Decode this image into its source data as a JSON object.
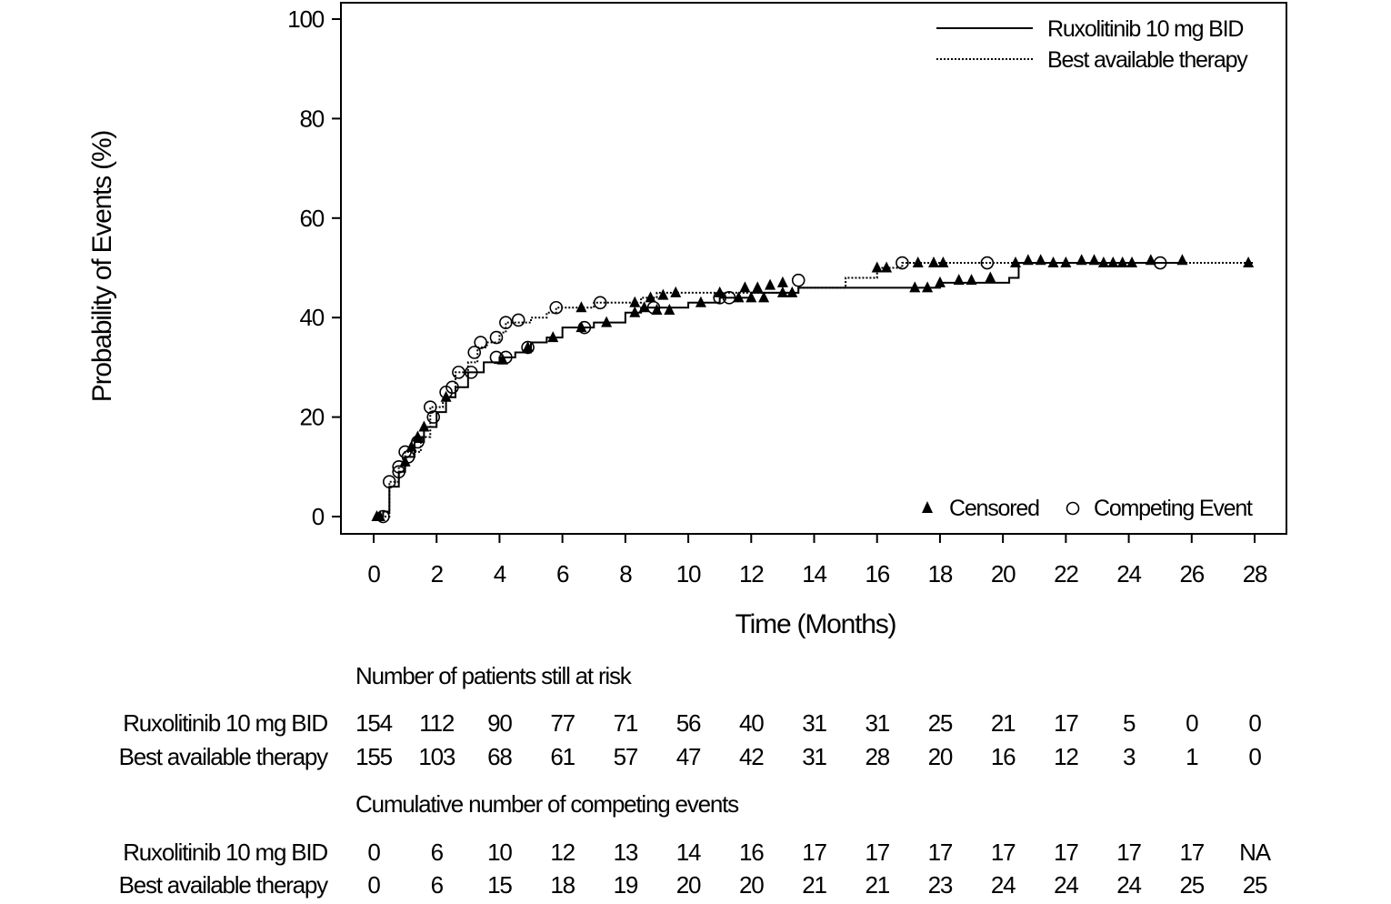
{
  "chart_data": {
    "type": "line",
    "subtype": "cumulative incidence step curve",
    "xlabel": "Time (Months)",
    "ylabel": "Probability of Events (%)",
    "xlim": [
      0,
      28
    ],
    "ylim": [
      0,
      100
    ],
    "xticks": [
      0,
      2,
      4,
      6,
      8,
      10,
      12,
      14,
      16,
      18,
      20,
      22,
      24,
      26,
      28
    ],
    "yticks": [
      0,
      20,
      40,
      60,
      80,
      100
    ],
    "grid": false,
    "legend": {
      "placement": "top-right",
      "markers_placement": "bottom-right",
      "censored_label": "Censored",
      "competing_label": "Competing Event"
    },
    "series": [
      {
        "name": "Ruxolitinib 10 mg BID",
        "style": "solid",
        "color": "#000000",
        "steps": [
          [
            0,
            0
          ],
          [
            0.3,
            1
          ],
          [
            0.5,
            6
          ],
          [
            0.8,
            9
          ],
          [
            1,
            12
          ],
          [
            1.3,
            15
          ],
          [
            1.6,
            18
          ],
          [
            2,
            21
          ],
          [
            2.3,
            24
          ],
          [
            2.6,
            26
          ],
          [
            3,
            29
          ],
          [
            3.5,
            31
          ],
          [
            4,
            32
          ],
          [
            4.5,
            33
          ],
          [
            5,
            35
          ],
          [
            5.5,
            36
          ],
          [
            6,
            38
          ],
          [
            7,
            39
          ],
          [
            8,
            41
          ],
          [
            8.5,
            42
          ],
          [
            10,
            43
          ],
          [
            11,
            44
          ],
          [
            12,
            45
          ],
          [
            13.5,
            46
          ],
          [
            17.2,
            46
          ],
          [
            18,
            47
          ],
          [
            20.2,
            48
          ],
          [
            20.5,
            51
          ],
          [
            25.7,
            51
          ]
        ],
        "censored": [
          [
            0.2,
            0
          ],
          [
            1,
            11
          ],
          [
            1.4,
            16
          ],
          [
            2.3,
            24
          ],
          [
            4.1,
            31.5
          ],
          [
            4.9,
            34
          ],
          [
            5.7,
            36
          ],
          [
            6.6,
            38
          ],
          [
            7.4,
            39
          ],
          [
            8.3,
            41
          ],
          [
            8.6,
            42
          ],
          [
            9,
            41.5
          ],
          [
            9.4,
            41.5
          ],
          [
            10.4,
            43
          ],
          [
            11.6,
            44
          ],
          [
            12,
            44
          ],
          [
            12.4,
            44
          ],
          [
            13,
            45
          ],
          [
            13.3,
            45
          ],
          [
            17.2,
            46
          ],
          [
            17.6,
            46
          ],
          [
            18,
            47
          ],
          [
            18.6,
            47.5
          ],
          [
            19,
            47.5
          ],
          [
            19.6,
            48
          ]
        ],
        "competing": [
          [
            0.3,
            0
          ],
          [
            0.8,
            9
          ],
          [
            1.1,
            12
          ],
          [
            1.4,
            15
          ],
          [
            1.9,
            20
          ],
          [
            2.5,
            26
          ],
          [
            3.1,
            29
          ],
          [
            3.9,
            32
          ],
          [
            4.2,
            32
          ],
          [
            4.9,
            34
          ],
          [
            6.7,
            38
          ],
          [
            8.9,
            42
          ],
          [
            11,
            44
          ],
          [
            11.3,
            44
          ]
        ]
      },
      {
        "name": "Best available therapy",
        "style": "dotted",
        "color": "#000000",
        "steps": [
          [
            0,
            0
          ],
          [
            0.5,
            7
          ],
          [
            0.8,
            10
          ],
          [
            1,
            13
          ],
          [
            1.5,
            16
          ],
          [
            1.8,
            22
          ],
          [
            2.2,
            24
          ],
          [
            2.6,
            29
          ],
          [
            3,
            31
          ],
          [
            3.3,
            34
          ],
          [
            3.6,
            35
          ],
          [
            4,
            37
          ],
          [
            4.2,
            39
          ],
          [
            5,
            40
          ],
          [
            5.5,
            41
          ],
          [
            5.8,
            42
          ],
          [
            7,
            43
          ],
          [
            8.5,
            44
          ],
          [
            9,
            45
          ],
          [
            13.5,
            46
          ],
          [
            15,
            48
          ],
          [
            16,
            50
          ],
          [
            16.8,
            51
          ],
          [
            28,
            51
          ]
        ],
        "censored": [
          [
            0.1,
            0
          ],
          [
            1.2,
            14
          ],
          [
            1.6,
            18
          ],
          [
            6.6,
            42
          ],
          [
            8.3,
            43
          ],
          [
            8.8,
            44
          ],
          [
            9.2,
            44.5
          ],
          [
            9.6,
            45
          ],
          [
            11,
            45
          ],
          [
            11.8,
            46
          ],
          [
            12.2,
            46
          ],
          [
            12.6,
            46.5
          ],
          [
            13,
            47
          ],
          [
            16,
            50
          ],
          [
            16.3,
            50
          ],
          [
            17.3,
            51
          ],
          [
            17.8,
            51
          ],
          [
            18.1,
            51
          ],
          [
            20.4,
            51
          ],
          [
            20.8,
            51.5
          ],
          [
            21.2,
            51.5
          ],
          [
            21.6,
            51
          ],
          [
            22,
            51
          ],
          [
            22.5,
            51.5
          ],
          [
            22.9,
            51.5
          ],
          [
            23.2,
            51
          ],
          [
            23.5,
            51
          ],
          [
            23.8,
            51
          ],
          [
            24.1,
            51
          ],
          [
            24.7,
            51.5
          ],
          [
            25.7,
            51.5
          ],
          [
            27.8,
            51
          ]
        ],
        "competing": [
          [
            0.5,
            7
          ],
          [
            0.8,
            10
          ],
          [
            1,
            13
          ],
          [
            1.8,
            22
          ],
          [
            2.3,
            25
          ],
          [
            2.7,
            29
          ],
          [
            3.2,
            33
          ],
          [
            3.4,
            35
          ],
          [
            3.9,
            36
          ],
          [
            4.2,
            39
          ],
          [
            4.6,
            39.5
          ],
          [
            5.8,
            42
          ],
          [
            7.2,
            43
          ],
          [
            13.5,
            47.5
          ],
          [
            16.8,
            51
          ],
          [
            19.5,
            51
          ],
          [
            25,
            51
          ]
        ]
      }
    ]
  },
  "risk_table": {
    "title": "Number of patients still at risk",
    "rows": [
      {
        "label": "Ruxolitinib 10 mg BID",
        "values": [
          "154",
          "112",
          "90",
          "77",
          "71",
          "56",
          "40",
          "31",
          "31",
          "25",
          "21",
          "17",
          "5",
          "0",
          "0"
        ]
      },
      {
        "label": "Best available therapy",
        "values": [
          "155",
          "103",
          "68",
          "61",
          "57",
          "47",
          "42",
          "31",
          "28",
          "20",
          "16",
          "12",
          "3",
          "1",
          "0"
        ]
      }
    ]
  },
  "competing_table": {
    "title": "Cumulative number of competing events",
    "rows": [
      {
        "label": "Ruxolitinib 10 mg BID",
        "values": [
          "0",
          "6",
          "10",
          "12",
          "13",
          "14",
          "16",
          "17",
          "17",
          "17",
          "17",
          "17",
          "17",
          "17",
          "NA"
        ]
      },
      {
        "label": "Best available therapy",
        "values": [
          "0",
          "6",
          "15",
          "18",
          "19",
          "20",
          "20",
          "21",
          "21",
          "23",
          "24",
          "24",
          "24",
          "25",
          "25"
        ]
      }
    ]
  }
}
